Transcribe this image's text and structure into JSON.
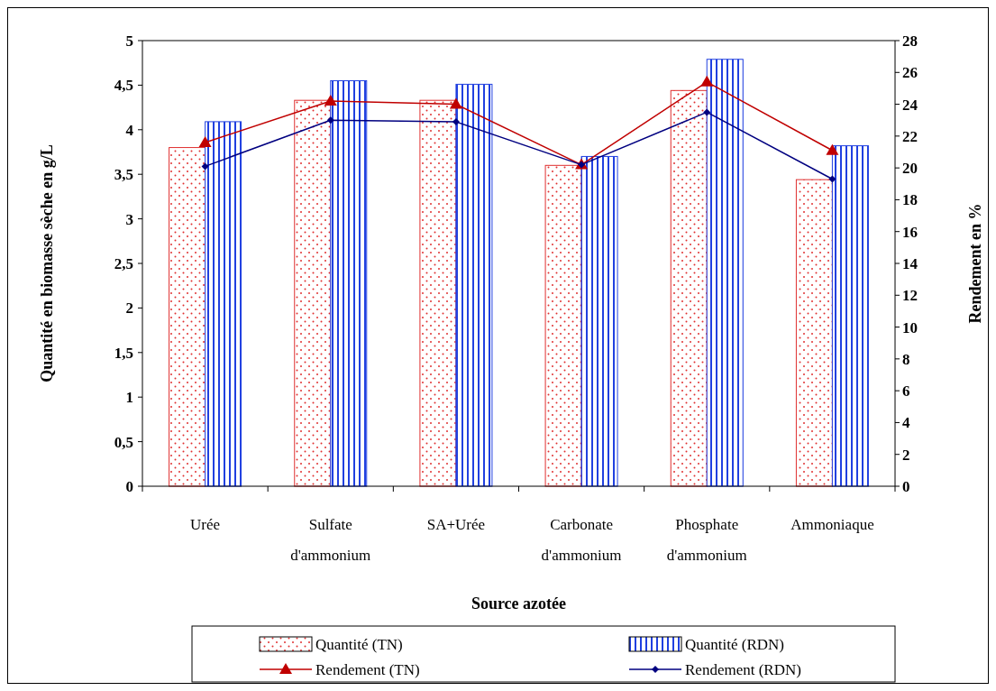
{
  "chart_data": {
    "type": "bar",
    "xlabel": "Source azotée",
    "ylabel": "Quantité en biomasse sèche en g/L",
    "y2label": "Rendement en %",
    "categories": [
      "Urée",
      "Sulfate d'ammonium",
      "SA+Urée",
      "Carbonate d'ammonium",
      "Phosphate d'ammonium",
      "Ammoniaque"
    ],
    "series": [
      {
        "name": "Quantité (TN)",
        "color": "#e03030",
        "values": [
          3.8,
          4.33,
          4.33,
          3.6,
          4.44,
          3.44
        ]
      },
      {
        "name": "Quantité (RDN)",
        "color": "#2040e0",
        "values": [
          4.09,
          4.55,
          4.51,
          3.7,
          4.79,
          3.82
        ]
      },
      {
        "name": "Rendement (TN)",
        "type": "line",
        "axis": "y2",
        "marker": "triangle",
        "color": "#c00000",
        "values": [
          21.6,
          24.2,
          24.0,
          20.2,
          25.4,
          21.1
        ]
      },
      {
        "name": "Rendement (RDN)",
        "type": "line",
        "axis": "y2",
        "marker": "diamond",
        "color": "#000080",
        "values": [
          20.1,
          23.0,
          22.9,
          20.2,
          23.5,
          19.3
        ]
      }
    ],
    "ylim": [
      0,
      5
    ],
    "yticks": [
      0,
      {
        "value": 0.5,
        "label": "0,5"
      },
      1,
      {
        "value": 1.5,
        "label": "1,5"
      },
      2,
      {
        "value": 2.5,
        "label": "2,5"
      },
      3,
      {
        "value": 3.5,
        "label": "3,5"
      },
      4,
      {
        "value": 4.5,
        "label": "4,5"
      },
      5
    ],
    "y2lim": [
      0,
      28
    ],
    "y2ticks": [
      0,
      2,
      4,
      6,
      8,
      10,
      12,
      14,
      16,
      18,
      20,
      22,
      24,
      26,
      28
    ],
    "legend": "bottom",
    "grid": false
  }
}
